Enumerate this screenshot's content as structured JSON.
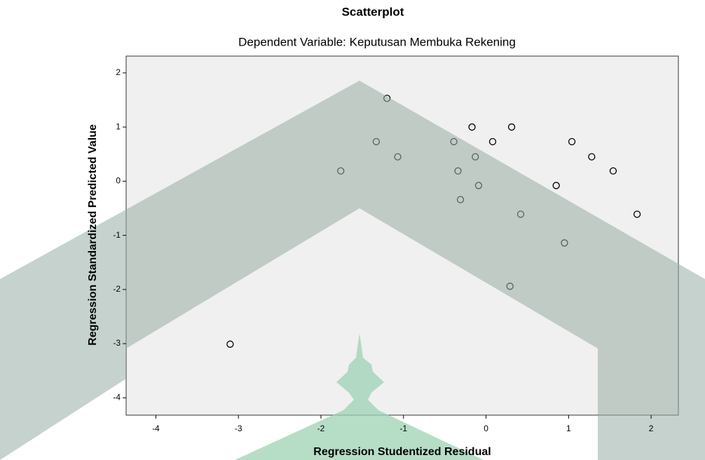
{
  "chart_data": {
    "type": "scatter",
    "title": "Scatterplot",
    "subtitle": "Dependent Variable: Keputusan Membuka Rekening",
    "x_label": "Regression Studentized Residual",
    "y_label": "Regression Standardized Predicted Value",
    "x": [
      -1.2,
      -0.17,
      0.31,
      -1.33,
      -0.39,
      0.08,
      1.04,
      -1.07,
      -0.13,
      1.28,
      -1.76,
      -0.34,
      1.54,
      -0.09,
      0.85,
      -0.31,
      0.42,
      1.83,
      0.95,
      0.29,
      -3.1
    ],
    "values": [
      1.53,
      1.0,
      1.0,
      0.73,
      0.73,
      0.73,
      0.73,
      0.45,
      0.45,
      0.45,
      0.19,
      0.19,
      0.19,
      -0.08,
      -0.08,
      -0.34,
      -0.61,
      -0.61,
      -1.14,
      -1.94,
      -3.01
    ],
    "xlim": [
      -4.36,
      2.33
    ],
    "ylim": [
      -4.32,
      2.31
    ],
    "xticks": [
      -4,
      -3,
      -2,
      -1,
      0,
      1,
      2
    ],
    "yticks": [
      -4,
      -3,
      -2,
      -1,
      0,
      1,
      2
    ],
    "color": "#000000",
    "background": "#f0f0f0"
  }
}
